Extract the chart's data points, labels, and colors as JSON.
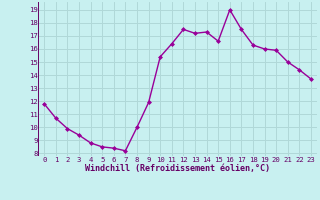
{
  "x": [
    0,
    1,
    2,
    3,
    4,
    5,
    6,
    7,
    8,
    9,
    10,
    11,
    12,
    13,
    14,
    15,
    16,
    17,
    18,
    19,
    20,
    21,
    22,
    23
  ],
  "y": [
    11.8,
    10.7,
    9.9,
    9.4,
    8.8,
    8.5,
    8.4,
    8.2,
    10.0,
    11.9,
    15.4,
    16.4,
    17.5,
    17.2,
    17.3,
    16.6,
    19.0,
    17.5,
    16.3,
    16.0,
    15.9,
    15.0,
    14.4,
    13.7
  ],
  "line_color": "#990099",
  "marker": "D",
  "marker_size": 2.0,
  "bg_color": "#c8f0f0",
  "grid_color": "#b0d8d8",
  "xlabel": "Windchill (Refroidissement éolien,°C)",
  "xlabel_color": "#660066",
  "tick_color": "#660066",
  "xlim": [
    -0.5,
    23.5
  ],
  "ylim": [
    7.8,
    19.6
  ],
  "yticks": [
    8,
    9,
    10,
    11,
    12,
    13,
    14,
    15,
    16,
    17,
    18,
    19
  ],
  "xticks": [
    0,
    1,
    2,
    3,
    4,
    5,
    6,
    7,
    8,
    9,
    10,
    11,
    12,
    13,
    14,
    15,
    16,
    17,
    18,
    19,
    20,
    21,
    22,
    23
  ],
  "line_width": 1.0,
  "tick_fontsize": 5.2,
  "xlabel_fontsize": 6.0
}
